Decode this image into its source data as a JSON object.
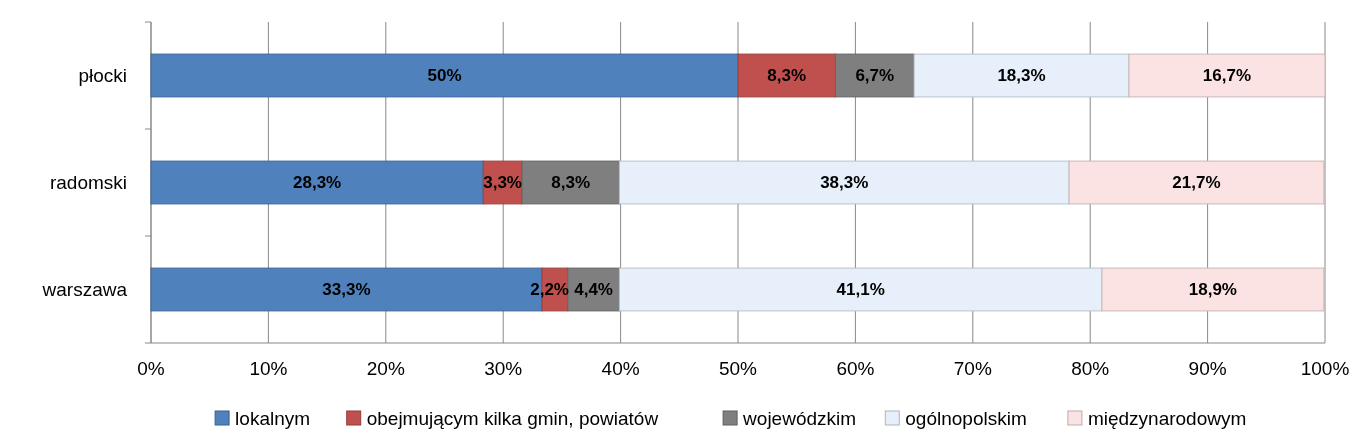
{
  "chart_data": {
    "type": "bar",
    "orientation": "horizontal",
    "stacked": true,
    "categories": [
      "płocki",
      "radomski",
      "warszawa"
    ],
    "series": [
      {
        "name": "lokalnym",
        "color": "#4f81bd",
        "values": [
          50,
          28.3,
          33.3
        ],
        "value_labels": [
          "50%",
          "28,3%",
          "33,3%"
        ]
      },
      {
        "name": "obejmującym kilka gmin, powiatów",
        "color": "#c0504d",
        "values": [
          8.3,
          3.3,
          2.2
        ],
        "value_labels": [
          "8,3%",
          "3,3%",
          "2,2%"
        ]
      },
      {
        "name": "wojewódzkim",
        "color": "#7f7f7f",
        "values": [
          6.7,
          8.3,
          4.4
        ],
        "value_labels": [
          "6,7%",
          "8,3%",
          "4,4%"
        ]
      },
      {
        "name": "ogólnopolskim",
        "color": "#e6effa",
        "values": [
          18.3,
          38.3,
          41.1
        ],
        "value_labels": [
          "18,3%",
          "38,3%",
          "41,1%"
        ]
      },
      {
        "name": "międzynarodowym",
        "color": "#fbe3e3",
        "values": [
          16.7,
          21.7,
          18.9
        ],
        "value_labels": [
          "16,7%",
          "21,7%",
          "18,9%"
        ]
      }
    ],
    "xlim": [
      0,
      100
    ],
    "xticks": [
      {
        "value": 0,
        "label": "0%"
      },
      {
        "value": 10,
        "label": "10%"
      },
      {
        "value": 20,
        "label": "20%"
      },
      {
        "value": 30,
        "label": "30%"
      },
      {
        "value": 40,
        "label": "40%"
      },
      {
        "value": 50,
        "label": "50%"
      },
      {
        "value": 60,
        "label": "60%"
      },
      {
        "value": 70,
        "label": "70%"
      },
      {
        "value": 80,
        "label": "80%"
      },
      {
        "value": 90,
        "label": "90%"
      },
      {
        "value": 100,
        "label": "100%"
      }
    ],
    "grid": "x",
    "legend": "bottom"
  }
}
